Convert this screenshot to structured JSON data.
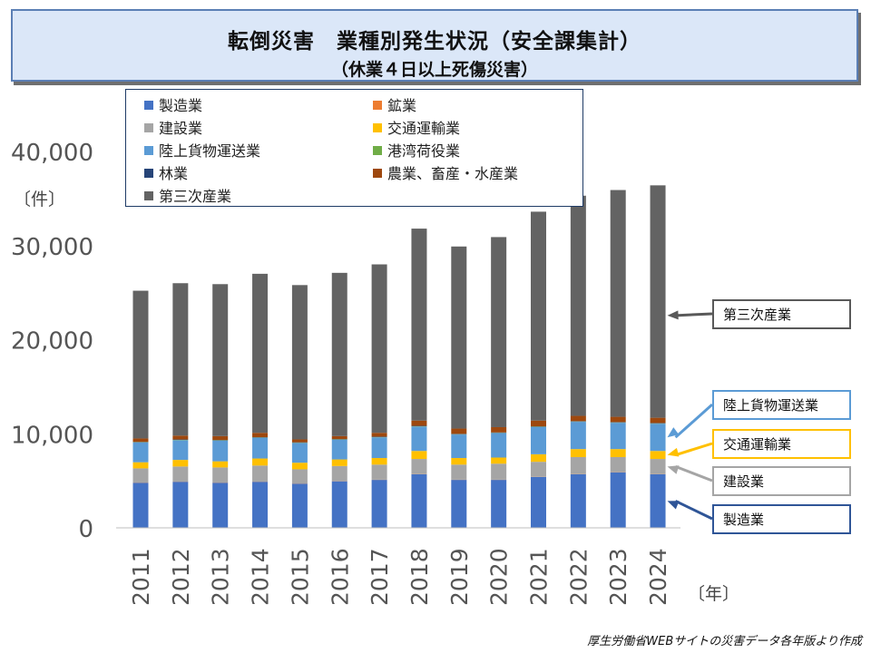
{
  "title": {
    "main": "転倒災害　業種別発生状況（安全課集計）",
    "sub": "（休業４日以上死傷災害）"
  },
  "chart_data": {
    "type": "bar",
    "stacked": true,
    "categories": [
      "2011",
      "2012",
      "2013",
      "2014",
      "2015",
      "2016",
      "2017",
      "2018",
      "2019",
      "2020",
      "2021",
      "2022",
      "2023",
      "2024"
    ],
    "ylim": [
      0,
      40000
    ],
    "yticks": [
      0,
      10000,
      20000,
      30000,
      40000
    ],
    "ytick_labels": [
      "0",
      "10,000",
      "20,000",
      "30,000",
      "40,000"
    ],
    "ylabel": "〔件〕",
    "xlabel": "〔年〕",
    "series": [
      {
        "name": "製造業",
        "color": "#4472c4",
        "values": [
          4800,
          4900,
          4800,
          4900,
          4700,
          4950,
          5100,
          5700,
          5100,
          5100,
          5400,
          5700,
          5900,
          5700
        ]
      },
      {
        "name": "鉱業",
        "color": "#ed7d31",
        "values": [
          20,
          20,
          20,
          20,
          20,
          20,
          20,
          20,
          20,
          20,
          20,
          20,
          20,
          20
        ]
      },
      {
        "name": "建設業",
        "color": "#a5a5a5",
        "values": [
          1500,
          1600,
          1600,
          1700,
          1500,
          1600,
          1600,
          1600,
          1600,
          1700,
          1600,
          1800,
          1600,
          1600
        ]
      },
      {
        "name": "交通運輸業",
        "color": "#ffc000",
        "values": [
          650,
          700,
          650,
          750,
          700,
          700,
          700,
          850,
          700,
          650,
          800,
          850,
          850,
          850
        ]
      },
      {
        "name": "陸上貨物運送業",
        "color": "#5b9bd5",
        "values": [
          2100,
          2100,
          2200,
          2200,
          2100,
          2100,
          2200,
          2600,
          2500,
          2600,
          2900,
          2900,
          2800,
          2900
        ]
      },
      {
        "name": "港湾荷役業",
        "color": "#70ad47",
        "values": [
          30,
          30,
          30,
          30,
          30,
          30,
          30,
          30,
          30,
          30,
          30,
          30,
          30,
          30
        ]
      },
      {
        "name": "林業",
        "color": "#264478",
        "values": [
          40,
          40,
          40,
          40,
          40,
          40,
          40,
          40,
          40,
          40,
          40,
          40,
          40,
          40
        ]
      },
      {
        "name": "農業、畜産・水産業",
        "color": "#9e480e",
        "values": [
          360,
          410,
          410,
          460,
          310,
          310,
          410,
          560,
          560,
          560,
          610,
          560,
          560,
          560
        ]
      },
      {
        "name": "第三次産業",
        "color": "#636363",
        "values": [
          15700,
          16200,
          16150,
          16900,
          16400,
          17350,
          17900,
          20400,
          19350,
          20200,
          22200,
          23400,
          24100,
          24700
        ]
      }
    ]
  },
  "legend": {
    "items": [
      {
        "label": "製造業",
        "color": "#4472c4"
      },
      {
        "label": "鉱業",
        "color": "#ed7d31"
      },
      {
        "label": "建設業",
        "color": "#a5a5a5"
      },
      {
        "label": "交通運輸業",
        "color": "#ffc000"
      },
      {
        "label": "陸上貨物運送業",
        "color": "#5b9bd5"
      },
      {
        "label": "港湾荷役業",
        "color": "#70ad47"
      },
      {
        "label": "林業",
        "color": "#264478"
      },
      {
        "label": "農業、畜産・水産業",
        "color": "#9e480e"
      },
      {
        "label": "第三次産業",
        "color": "#636363"
      }
    ]
  },
  "callouts": [
    {
      "label": "第三次産業",
      "series": "第三次産業",
      "border": "#595959",
      "arrow": "#595959"
    },
    {
      "label": "陸上貨物運送業",
      "series": "陸上貨物運送業",
      "border": "#5b9bd5",
      "arrow": "#5b9bd5"
    },
    {
      "label": "交通運輸業",
      "series": "交通運輸業",
      "border": "#ffc000",
      "arrow": "#ffc000"
    },
    {
      "label": "建設業",
      "series": "建設業",
      "border": "#a5a5a5",
      "arrow": "#a5a5a5"
    },
    {
      "label": "製造業",
      "series": "製造業",
      "border": "#2f5597",
      "arrow": "#2f5597"
    }
  ],
  "source_note": "厚生労働省WEBサイトの災害データ各年版より作成"
}
